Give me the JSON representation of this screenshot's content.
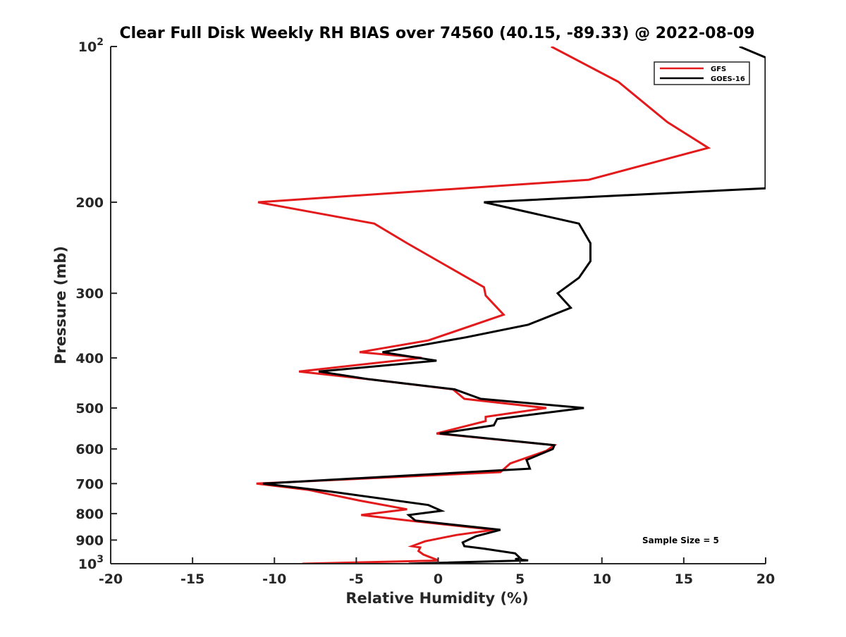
{
  "chart_data": {
    "type": "line",
    "title": "Clear Full Disk Weekly RH BIAS over 74560 (40.15, -89.33) @ 2022-08-09",
    "xlabel": "Relative Humidity (%)",
    "ylabel": "Pressure (mb)",
    "xlim": [
      -20,
      20
    ],
    "ylim": [
      100,
      1000
    ],
    "y_scale": "log",
    "y_reversed": true,
    "grid": false,
    "legend_position": "top-right",
    "x_ticks": [
      "-20",
      "-15",
      "-10",
      "-5",
      "0",
      "5",
      "10",
      "15",
      "20"
    ],
    "x_tick_values": [
      -20,
      -15,
      -10,
      -5,
      0,
      5,
      10,
      15,
      20
    ],
    "y_ticks": [
      {
        "value": 100,
        "base": "10",
        "exp": "2"
      },
      {
        "value": 200,
        "label": "200"
      },
      {
        "value": 300,
        "label": "300"
      },
      {
        "value": 400,
        "label": "400"
      },
      {
        "value": 500,
        "label": "500"
      },
      {
        "value": 600,
        "label": "600"
      },
      {
        "value": 700,
        "label": "700"
      },
      {
        "value": 800,
        "label": "800"
      },
      {
        "value": 900,
        "label": "900"
      },
      {
        "value": 1000,
        "base": "10",
        "exp": "3"
      }
    ],
    "annotation": "Sample Size = 5",
    "series": [
      {
        "name": "GFS",
        "color": "#e31a1c",
        "points": [
          [
            6.9,
            100
          ],
          [
            11,
            117
          ],
          [
            14,
            140
          ],
          [
            16.5,
            157
          ],
          [
            9.2,
            181
          ],
          [
            -11,
            200
          ],
          [
            -3.9,
            220
          ],
          [
            -1.9,
            240
          ],
          [
            2.8,
            292
          ],
          [
            2.9,
            303
          ],
          [
            4.0,
            330
          ],
          [
            -0.6,
            370
          ],
          [
            -4.8,
            390
          ],
          [
            -1.0,
            400
          ],
          [
            -8.5,
            425
          ],
          [
            -4.2,
            440
          ],
          [
            0.9,
            460
          ],
          [
            1.6,
            480
          ],
          [
            6.6,
            500
          ],
          [
            2.9,
            520
          ],
          [
            2.9,
            530
          ],
          [
            -0.1,
            560
          ],
          [
            7.1,
            590
          ],
          [
            6.6,
            605
          ],
          [
            4.4,
            640
          ],
          [
            3.8,
            665
          ],
          [
            -11.1,
            700
          ],
          [
            -7.9,
            720
          ],
          [
            -4.8,
            755
          ],
          [
            -1.9,
            785
          ],
          [
            -4.7,
            805
          ],
          [
            -1.8,
            825
          ],
          [
            3.4,
            860
          ],
          [
            1.1,
            880
          ],
          [
            -0.8,
            905
          ],
          [
            -1.6,
            925
          ],
          [
            -1.1,
            930
          ],
          [
            -1.2,
            945
          ],
          [
            -0.9,
            960
          ],
          [
            0.0,
            985
          ],
          [
            -0.5,
            987
          ],
          [
            -8.3,
            1000
          ]
        ]
      },
      {
        "name": "GOES-16",
        "color": "#000000",
        "points": [
          [
            18.4,
            100
          ],
          [
            20.0,
            105
          ],
          [
            20.0,
            188
          ],
          [
            2.8,
            200
          ],
          [
            8.6,
            220
          ],
          [
            9.3,
            240
          ],
          [
            9.3,
            260
          ],
          [
            8.6,
            280
          ],
          [
            7.3,
            300
          ],
          [
            8.1,
            320
          ],
          [
            5.5,
            345
          ],
          [
            1.7,
            365
          ],
          [
            -3.4,
            390
          ],
          [
            -0.1,
            405
          ],
          [
            -7.3,
            425
          ],
          [
            -4.2,
            440
          ],
          [
            1.0,
            460
          ],
          [
            2.6,
            480
          ],
          [
            8.9,
            500
          ],
          [
            3.6,
            525
          ],
          [
            3.4,
            540
          ],
          [
            0.1,
            560
          ],
          [
            7.1,
            590
          ],
          [
            7.0,
            600
          ],
          [
            5.4,
            630
          ],
          [
            5.6,
            655
          ],
          [
            -10.7,
            700
          ],
          [
            -6.6,
            725
          ],
          [
            -0.6,
            770
          ],
          [
            0.2,
            790
          ],
          [
            -1.8,
            805
          ],
          [
            -1.4,
            825
          ],
          [
            3.8,
            860
          ],
          [
            2.3,
            885
          ],
          [
            1.5,
            910
          ],
          [
            1.6,
            925
          ],
          [
            2.8,
            935
          ],
          [
            4.7,
            955
          ],
          [
            5.0,
            975
          ],
          [
            4.7,
            980
          ],
          [
            5.5,
            985
          ],
          [
            -1.8,
            1000
          ]
        ]
      }
    ]
  }
}
